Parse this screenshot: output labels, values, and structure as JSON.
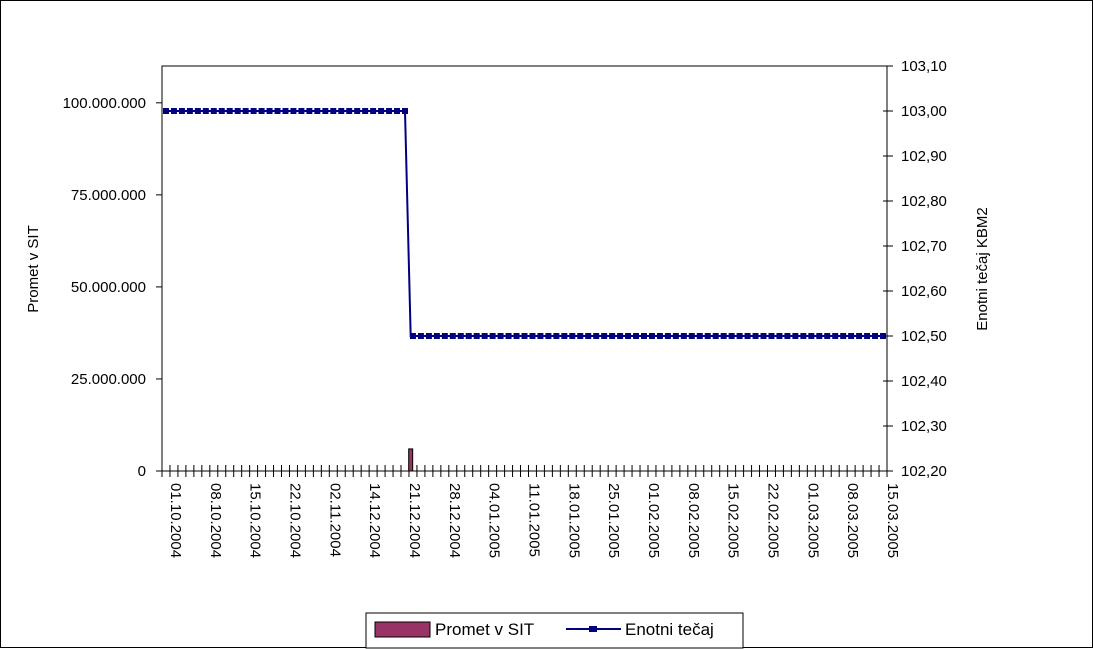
{
  "chart_data": {
    "type": "bar+line",
    "x_labels": [
      "01.10.2004",
      "08.10.2004",
      "15.10.2004",
      "22.10.2004",
      "02.11.2004",
      "14.12.2004",
      "21.12.2004",
      "28.12.2004",
      "04.01.2005",
      "11.01.2005",
      "18.01.2005",
      "25.01.2005",
      "01.02.2005",
      "08.02.2005",
      "15.02.2005",
      "22.02.2005",
      "01.03.2005",
      "08.03.2005",
      "15.03.2005"
    ],
    "left_axis": {
      "label": "Promet v SIT",
      "ylim": [
        0,
        110000000
      ],
      "ticks": [
        0,
        25000000,
        50000000,
        75000000,
        100000000
      ],
      "tick_labels": [
        "0",
        "25.000.000",
        "50.000.000",
        "75.000.000",
        "100.000.000"
      ]
    },
    "right_axis": {
      "label": "Enotni tečaj KBM2",
      "ylim": [
        102.2,
        103.1
      ],
      "ticks": [
        102.2,
        102.3,
        102.4,
        102.5,
        102.6,
        102.7,
        102.8,
        102.9,
        103.0,
        103.1
      ],
      "tick_labels": [
        "102,20",
        "102,30",
        "102,40",
        "102,50",
        "102,60",
        "102,70",
        "102,80",
        "102,90",
        "103,00",
        "103,10"
      ]
    },
    "series": [
      {
        "name": "Promet v SIT",
        "type": "bar",
        "axis": "left",
        "color": "#993366",
        "points": [
          {
            "x": "22.12.2004",
            "y": 6000000
          }
        ]
      },
      {
        "name": "Enotni tečaj",
        "type": "line",
        "axis": "right",
        "color": "#000080",
        "points": [
          {
            "x": "01.10.2004",
            "y": 103.0
          },
          {
            "x": "21.12.2004",
            "y": 103.0
          },
          {
            "x": "22.12.2004",
            "y": 102.5
          },
          {
            "x": "15.03.2005",
            "y": 102.5
          }
        ]
      }
    ],
    "legend": {
      "position": "bottom",
      "items": [
        "Promet v SIT",
        "Enotni tečaj"
      ]
    },
    "grid": false
  }
}
